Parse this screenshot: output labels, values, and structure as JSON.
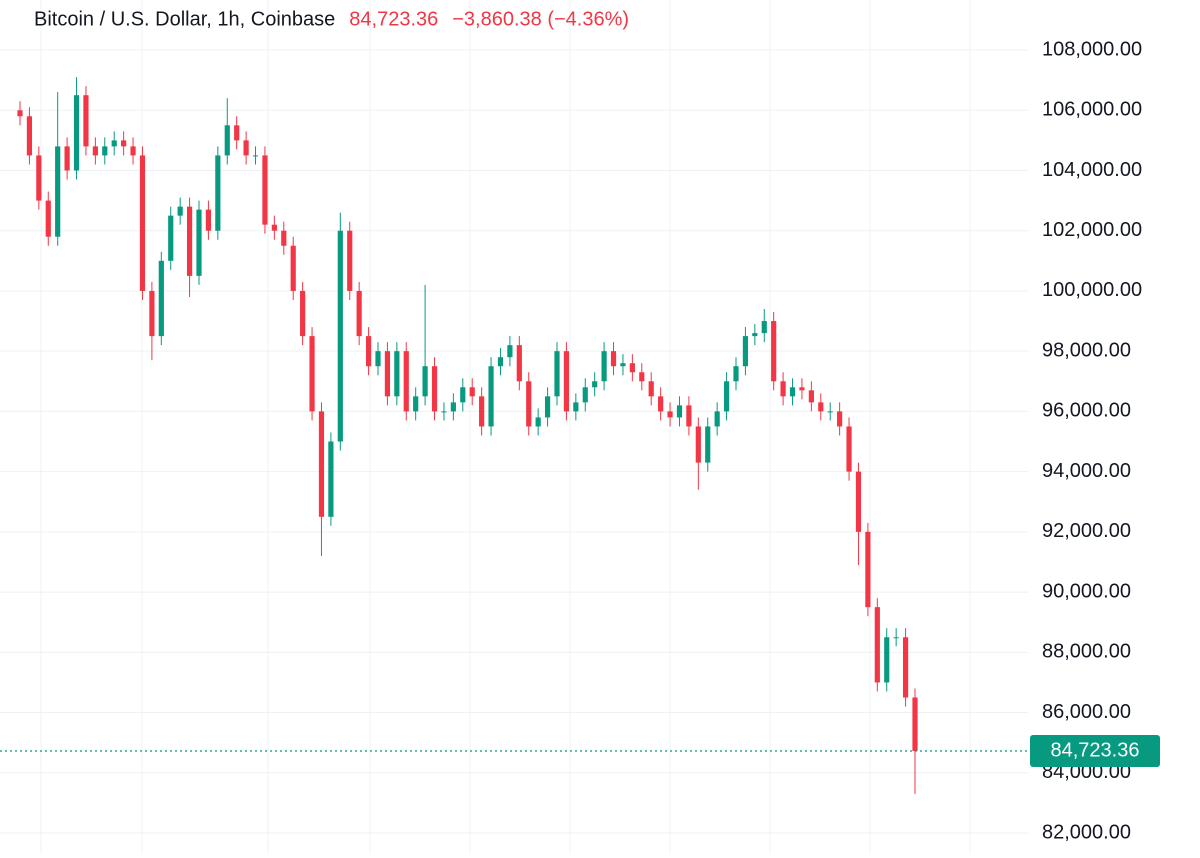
{
  "chart_data": {
    "type": "candlestick",
    "title": "Bitcoin / U.S. Dollar, 1h, Coinbase",
    "last_price": {
      "value": 84723.36,
      "label": "84,723.36"
    },
    "change": "−3,860.38 (−4.36%)",
    "up_color": "#089981",
    "down_color": "#f23645",
    "price_line_color": "#089981",
    "ylim": [
      81336,
      109661
    ],
    "yticks": [
      {
        "value": 82000,
        "label": "82,000.00"
      },
      {
        "value": 84000,
        "label": "84,000.00"
      },
      {
        "value": 86000,
        "label": "86,000.00"
      },
      {
        "value": 88000,
        "label": "88,000.00"
      },
      {
        "value": 90000,
        "label": "90,000.00"
      },
      {
        "value": 92000,
        "label": "92,000.00"
      },
      {
        "value": 94000,
        "label": "94,000.00"
      },
      {
        "value": 96000,
        "label": "96,000.00"
      },
      {
        "value": 98000,
        "label": "98,000.00"
      },
      {
        "value": 100000,
        "label": "100,000.00"
      },
      {
        "value": 102000,
        "label": "102,000.00"
      },
      {
        "value": 104000,
        "label": "104,000.00"
      },
      {
        "value": 106000,
        "label": "106,000.00"
      },
      {
        "value": 108000,
        "label": "108,000.00"
      }
    ],
    "grid": true,
    "open": [
      106000,
      105800,
      104500,
      103000,
      101800,
      104800,
      104000,
      106500,
      104800,
      104500,
      104800,
      105000,
      104800,
      104500,
      100000,
      98500,
      101000,
      102500,
      102800,
      100500,
      102700,
      102000,
      104500,
      105500,
      105000,
      104500,
      104500,
      102200,
      102000,
      101500,
      100000,
      98500,
      96000,
      92500,
      95000,
      102000,
      100000,
      98500,
      97500,
      98000,
      96500,
      98000,
      96000,
      96500,
      97500,
      96000,
      96000,
      96300,
      96800,
      96500,
      95500,
      97500,
      97800,
      98200,
      97000,
      95500,
      95800,
      96500,
      98000,
      96000,
      96300,
      96800,
      97000,
      98000,
      97500,
      97600,
      97300,
      97000,
      96500,
      96000,
      95800,
      96200,
      95500,
      94300,
      95500,
      96000,
      97000,
      97500,
      98500,
      98600,
      99000,
      97000,
      96500,
      96800,
      96700,
      96300,
      96000,
      96000,
      95500,
      94000,
      92000,
      89500,
      87000,
      88500,
      88500,
      86500
    ],
    "high": [
      106300,
      106100,
      104800,
      103300,
      106600,
      105100,
      107100,
      106800,
      105100,
      105100,
      105300,
      105300,
      105100,
      104800,
      100300,
      101300,
      102800,
      103100,
      103100,
      103000,
      103000,
      104800,
      106400,
      105800,
      105300,
      104800,
      104800,
      102500,
      102300,
      101800,
      100300,
      98800,
      96300,
      95300,
      102600,
      102300,
      100300,
      98800,
      98300,
      98300,
      98300,
      98300,
      96800,
      100200,
      97800,
      96300,
      96600,
      97100,
      97100,
      96800,
      97800,
      98100,
      98500,
      98500,
      97300,
      96100,
      96800,
      98300,
      98300,
      96600,
      97100,
      97300,
      98300,
      98300,
      97900,
      97900,
      97600,
      97300,
      96800,
      96300,
      96500,
      96500,
      95800,
      95800,
      96300,
      97300,
      97800,
      98800,
      98900,
      99400,
      99300,
      97300,
      97100,
      97100,
      97000,
      96600,
      96300,
      96300,
      95800,
      94300,
      92300,
      89800,
      88800,
      88800,
      88800,
      86800
    ],
    "low": [
      105500,
      104200,
      102700,
      101500,
      101500,
      103700,
      103700,
      104500,
      104200,
      104200,
      104500,
      104500,
      104200,
      99700,
      97700,
      98200,
      100700,
      102200,
      99800,
      100200,
      101700,
      101700,
      104200,
      104700,
      104200,
      104200,
      101900,
      101700,
      101200,
      99700,
      98200,
      95700,
      91200,
      92200,
      94700,
      99700,
      98200,
      97200,
      97200,
      96200,
      96200,
      95700,
      95700,
      96200,
      95700,
      95700,
      95700,
      96000,
      96200,
      95200,
      95200,
      97200,
      97500,
      96700,
      95200,
      95200,
      95500,
      96200,
      95700,
      95700,
      96000,
      96500,
      96700,
      97200,
      97200,
      97000,
      96700,
      96200,
      95700,
      95500,
      95500,
      95200,
      93400,
      94000,
      95200,
      95700,
      96700,
      97200,
      98200,
      98300,
      96700,
      96200,
      96200,
      96400,
      96000,
      95700,
      95700,
      95200,
      93700,
      90900,
      89200,
      86700,
      86700,
      88200,
      86200,
      83300
    ],
    "close": [
      105800,
      104500,
      103000,
      101800,
      104800,
      104000,
      106500,
      104800,
      104500,
      104800,
      105000,
      104800,
      104500,
      100000,
      98500,
      101000,
      102500,
      102800,
      100500,
      102700,
      102000,
      104500,
      105500,
      105000,
      104500,
      104500,
      102200,
      102000,
      101500,
      100000,
      98500,
      96000,
      92500,
      95000,
      102000,
      100000,
      98500,
      97500,
      98000,
      96500,
      98000,
      96000,
      96500,
      97500,
      96000,
      96000,
      96300,
      96800,
      96500,
      95500,
      97500,
      97800,
      98200,
      97000,
      95500,
      95800,
      96500,
      98000,
      96000,
      96300,
      96800,
      97000,
      98000,
      97500,
      97600,
      97300,
      97000,
      96500,
      96000,
      95800,
      96200,
      95500,
      94300,
      95500,
      96000,
      97000,
      97500,
      98500,
      98600,
      99000,
      97000,
      96500,
      96800,
      96700,
      96300,
      96000,
      96000,
      95500,
      94000,
      92000,
      89500,
      87000,
      88500,
      88500,
      86500,
      84723.36
    ]
  }
}
